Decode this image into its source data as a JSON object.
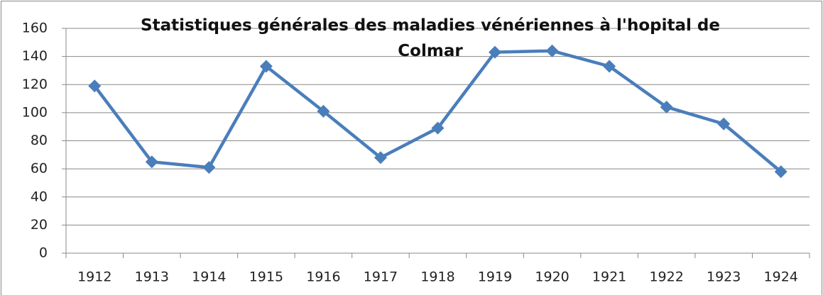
{
  "chart_data": {
    "type": "line",
    "title": "Statistiques générales des maladies vénériennes à l'hopital de Colmar",
    "categories": [
      "1912",
      "1913",
      "1914",
      "1915",
      "1916",
      "1917",
      "1918",
      "1919",
      "1920",
      "1921",
      "1922",
      "1923",
      "1924"
    ],
    "series": [
      {
        "color": "#4a7ebb",
        "values": [
          119,
          65,
          61,
          133,
          101,
          68,
          89,
          143,
          144,
          133,
          104,
          92,
          58
        ]
      }
    ],
    "ylim": [
      0,
      160
    ],
    "yticks": [
      0,
      20,
      40,
      60,
      80,
      100,
      120,
      140,
      160
    ],
    "grid": true
  }
}
